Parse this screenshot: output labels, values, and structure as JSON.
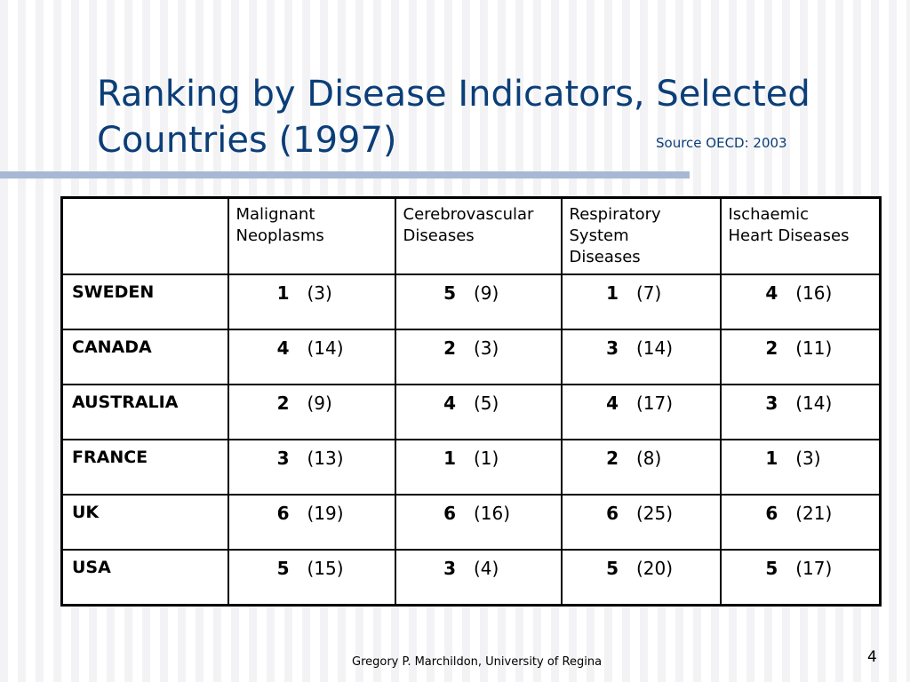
{
  "slide": {
    "title_line1": "Ranking by Disease Indicators, Selected",
    "title_line2": "Countries (1997)",
    "source": "Source OECD: 2003",
    "footer": "Gregory P. Marchildon, University of Regina",
    "page_number": "4"
  },
  "table": {
    "headers": [
      "",
      "Malignant Neoplasms",
      "Cerebrovascular Diseases",
      "Respiratory System Diseases",
      "Ischaemic Heart Diseases"
    ],
    "header_lines": [
      [],
      [
        "Malignant",
        "Neoplasms"
      ],
      [
        "Cerebrovascular",
        "Diseases"
      ],
      [
        "Respiratory",
        "System",
        "Diseases"
      ],
      [
        "Ischaemic",
        "Heart Diseases"
      ]
    ],
    "rows": [
      {
        "country": "SWEDEN",
        "cells": [
          {
            "rank": "1",
            "value": "(3)"
          },
          {
            "rank": "5",
            "value": "(9)"
          },
          {
            "rank": "1",
            "value": "(7)"
          },
          {
            "rank": "4",
            "value": "(16)"
          }
        ]
      },
      {
        "country": "CANADA",
        "cells": [
          {
            "rank": "4",
            "value": "(14)"
          },
          {
            "rank": "2",
            "value": "(3)"
          },
          {
            "rank": "3",
            "value": "(14)"
          },
          {
            "rank": "2",
            "value": "(11)"
          }
        ]
      },
      {
        "country": "AUSTRALIA",
        "cells": [
          {
            "rank": "2",
            "value": "(9)"
          },
          {
            "rank": "4",
            "value": "(5)"
          },
          {
            "rank": "4",
            "value": "(17)"
          },
          {
            "rank": "3",
            "value": "(14)"
          }
        ]
      },
      {
        "country": "FRANCE",
        "cells": [
          {
            "rank": "3",
            "value": "(13)"
          },
          {
            "rank": "1",
            "value": "(1)"
          },
          {
            "rank": "2",
            "value": "(8)"
          },
          {
            "rank": "1",
            "value": "(3)"
          }
        ]
      },
      {
        "country": "UK",
        "cells": [
          {
            "rank": "6",
            "value": "(19)"
          },
          {
            "rank": "6",
            "value": "(16)"
          },
          {
            "rank": "6",
            "value": "(25)"
          },
          {
            "rank": "6",
            "value": "(21)"
          }
        ]
      },
      {
        "country": "USA",
        "cells": [
          {
            "rank": "5",
            "value": "(15)"
          },
          {
            "rank": "3",
            "value": "(4)"
          },
          {
            "rank": "5",
            "value": "(20)"
          },
          {
            "rank": "5",
            "value": "(17)"
          }
        ]
      }
    ]
  },
  "colors": {
    "title": "#0b3e78",
    "rule": "#a8b8d4"
  }
}
